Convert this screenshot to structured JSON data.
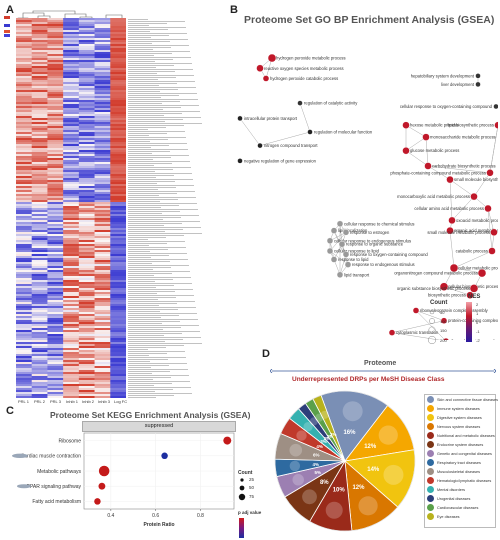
{
  "panels": {
    "a": "A",
    "b": "B",
    "c": "C",
    "d": "D"
  },
  "heatmap": {
    "columns": [
      "PRL 1",
      "PRL 2",
      "PRL 3",
      "Inhib 1",
      "Inhib 2",
      "Inhib 3",
      "Log FC"
    ],
    "rows": 190
  },
  "chart_data": [
    {
      "type": "network",
      "title": "Proteome Set GO BP Enrichment Analysis (GSEA)",
      "legend": {
        "count_title": "Count",
        "count_values": [
          "50",
          "100",
          "150",
          "200"
        ],
        "nes_title": "NES",
        "nes_values": [
          "2",
          "1",
          "0",
          "-1",
          "-2"
        ]
      },
      "nodes": [
        "hydrogen peroxide metabolic process",
        "reactive oxygen species metabolic process",
        "hydrogen peroxide catabolic process",
        "regulation of catalytic activity",
        "intracellular protein transport",
        "regulation of molecular function",
        "nitrogen compound transport",
        "negative regulation of gene expression",
        "hepatobiliary system development",
        "liver development",
        "cellular response to oxygen-containing compound",
        "hexose metabolic process",
        "monosaccharide metabolic process",
        "glucose metabolic process",
        "lipid biosynthetic process",
        "carbohydrate biosynthetic process",
        "phosphate-containing compound metabolic process",
        "small molecule biosynthetic process",
        "monocarboxylic acid metabolic process",
        "cellular amino acid metabolic process",
        "oxoacid metabolic process",
        "organic acid metabolic process",
        "small molecule metabolic process",
        "catabolic process",
        "cellular response to chemical stimulus",
        "lipid localization",
        "response to estrogen",
        "cellular response to endogenous stimulus",
        "response to organic substance",
        "cellular response to lipid",
        "response to oxygen-containing compound",
        "response to lipid",
        "response to endogenous stimulus",
        "lipid transport",
        "cellular metabolic process",
        "organonitrogen compound metabolic process",
        "cellular biosynthetic process",
        "organic substance biosynthetic process",
        "biosynthetic process",
        "ribonucleoprotein complex assembly",
        "protein-containing complex assembly",
        "cytoplasmic translation",
        "ribonucleoprotein complex subunit organization"
      ]
    },
    {
      "type": "scatter",
      "title": "Proteome Set KEGG Enrichment Analysis (GSEA)",
      "facet": "suppressed",
      "xlabel": "Protein Ratio",
      "x_ticks": [
        0.4,
        0.6,
        0.8
      ],
      "xlim": [
        0.28,
        0.95
      ],
      "categories": [
        "Ribosome",
        "Cardiac muscle contraction",
        "Metabolic pathways",
        "PPAR signaling pathway",
        "Fatty acid metabolism"
      ],
      "x": [
        0.92,
        0.64,
        0.37,
        0.36,
        0.34
      ],
      "count": [
        30,
        15,
        70,
        18,
        15
      ],
      "colors": [
        "#c41a1a",
        "#1c2ea0",
        "#c41a1a",
        "#c41a1a",
        "#c41a1a"
      ],
      "legend": {
        "count_title": "Count",
        "count_values": [
          "25",
          "50",
          "75"
        ],
        "color_title": "p adj value"
      }
    },
    {
      "type": "pie",
      "title": "Proteome",
      "subtitle": "Underrepresented DRPs per MeSH Disease Class",
      "labels": [
        "Skin and connective tissue diseases",
        "Immune system diseases",
        "Digestive system diseases",
        "Nervous system diseases",
        "Nutritional and metabolic diseases",
        "Endocrine system diseases",
        "Genetic and congenital diseases",
        "Respiratory tract diseases",
        "Musculoskeletal diseases",
        "Hematologic/lymphatic diseases",
        "Mental disorders",
        "Urogenital diseases",
        "Cardiovascular diseases",
        "Eye diseases"
      ],
      "values": [
        16,
        12,
        14,
        12,
        10,
        8,
        5,
        4,
        6,
        4,
        3,
        2,
        2,
        2
      ],
      "slice_labels": [
        "16%",
        "12%",
        "14%",
        "12%",
        "10%",
        "8%",
        "5%",
        "4%",
        "6%",
        "4%",
        "3%",
        "2%",
        "2%",
        "2%"
      ],
      "colors": [
        "#7a8fb5",
        "#f5a700",
        "#f1c40f",
        "#d97700",
        "#9a2a1a",
        "#7a3515",
        "#9c7fb2",
        "#2e6aa0",
        "#9e8f84",
        "#c0392b",
        "#35b1b0",
        "#2c3e7a",
        "#5aa04a",
        "#b8b21d"
      ]
    }
  ]
}
